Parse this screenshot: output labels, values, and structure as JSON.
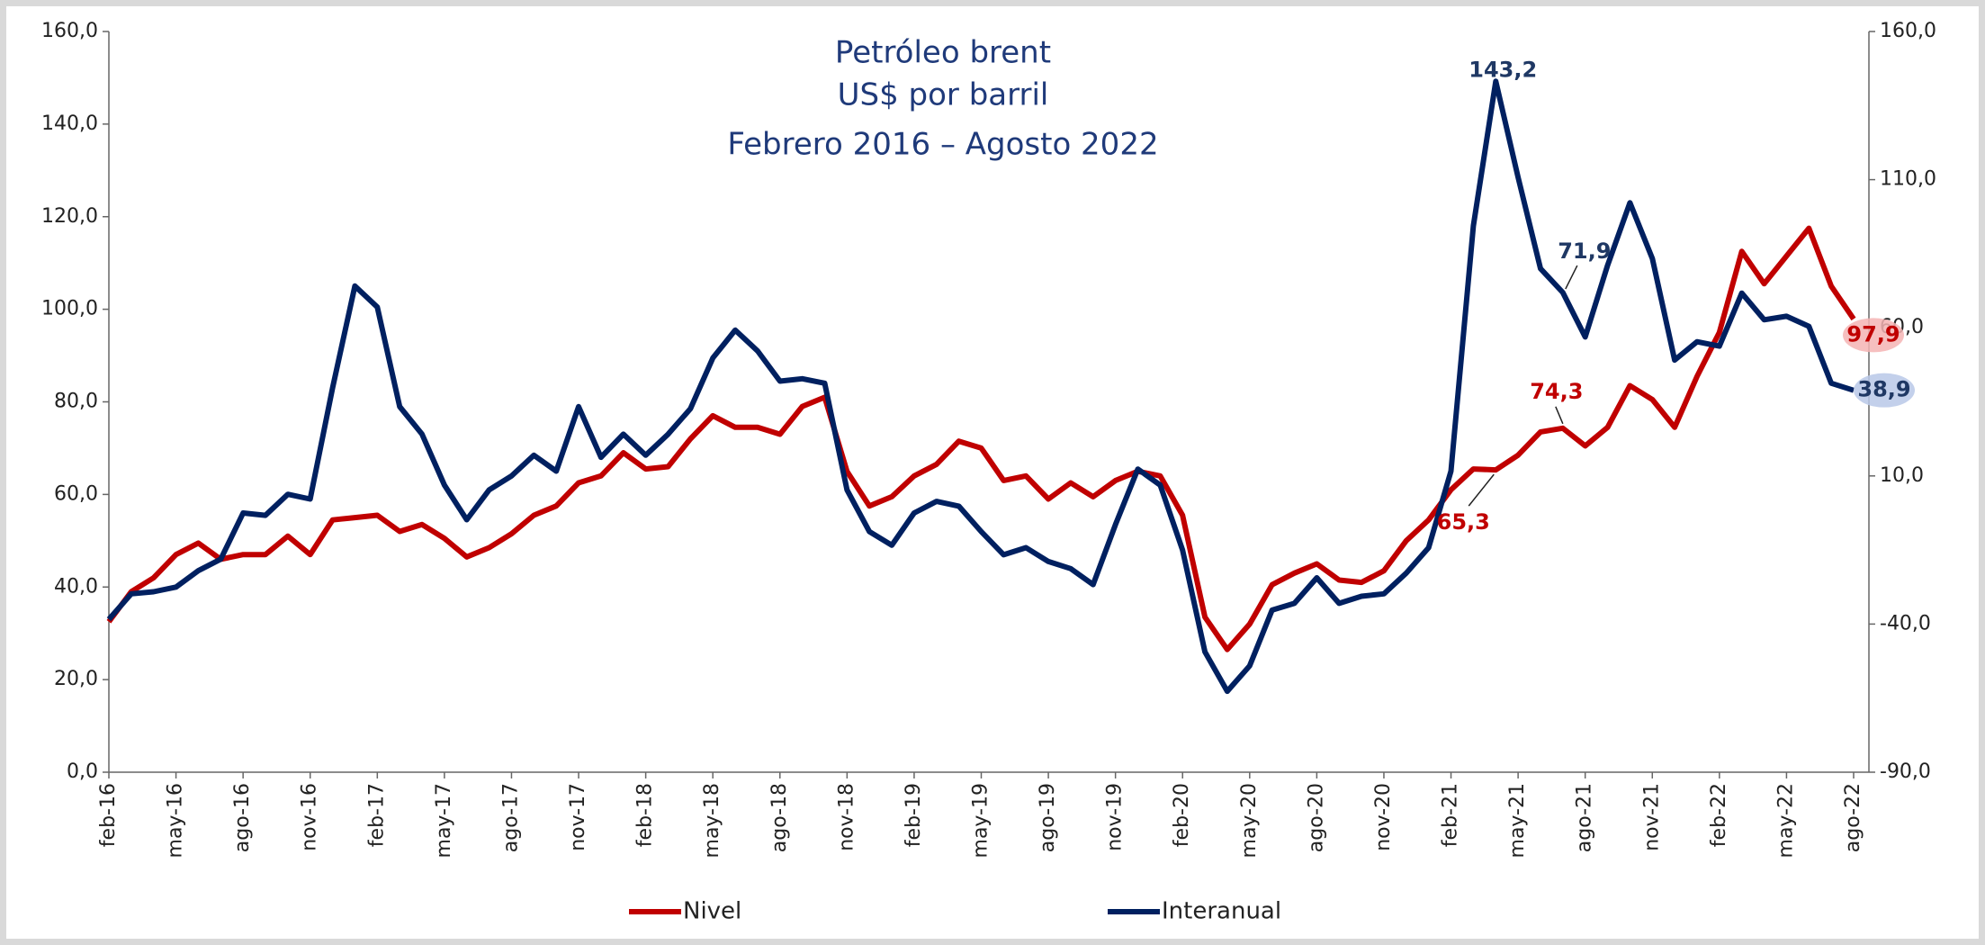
{
  "chart_data": {
    "type": "line",
    "title": [
      "Petróleo brent",
      "US$ por barril",
      "Febrero 2016 – Agosto 2022"
    ],
    "categories": [
      "feb-16",
      null,
      null,
      "may-16",
      null,
      null,
      "ago-16",
      null,
      null,
      "nov-16",
      null,
      null,
      "feb-17",
      null,
      null,
      "may-17",
      null,
      null,
      "ago-17",
      null,
      null,
      "nov-17",
      null,
      null,
      "feb-18",
      null,
      null,
      "may-18",
      null,
      null,
      "ago-18",
      null,
      null,
      "nov-18",
      null,
      null,
      "feb-19",
      null,
      null,
      "may-19",
      null,
      null,
      "ago-19",
      null,
      null,
      "nov-19",
      null,
      null,
      "feb-20",
      null,
      null,
      "may-20",
      null,
      null,
      "ago-20",
      null,
      null,
      "nov-20",
      null,
      null,
      "feb-21",
      null,
      null,
      "may-21",
      null,
      null,
      "ago-21",
      null,
      null,
      "nov-21",
      null,
      null,
      "feb-22",
      null,
      null,
      "may-22",
      null,
      null,
      "ago-22"
    ],
    "series": [
      {
        "name": "Nivel",
        "color": "#c00000",
        "values": [
          32.5,
          39,
          42,
          47,
          49.5,
          46,
          47,
          47,
          51,
          47,
          54.5,
          55,
          55.5,
          52,
          53.5,
          50.5,
          46.5,
          48.5,
          51.5,
          55.5,
          57.5,
          62.5,
          64,
          69,
          65.5,
          66,
          72,
          77,
          74.5,
          74.5,
          73,
          79,
          81,
          65,
          57.5,
          59.5,
          64,
          66.5,
          71.5,
          70,
          63,
          64,
          59,
          62.5,
          59.5,
          63,
          65,
          64,
          55.5,
          33.5,
          26.5,
          32,
          40.5,
          43,
          45,
          41.5,
          41,
          43.5,
          50,
          54.5,
          61,
          65.5,
          65.3,
          68.5,
          73.5,
          74.3,
          70.5,
          74.5,
          83.5,
          80.5,
          74.5,
          85.5,
          95,
          112.5,
          105.5,
          111.5,
          117.5,
          105,
          97.9
        ],
        "value_labels": [
          null,
          null,
          null,
          null,
          null,
          null,
          null,
          null,
          null,
          null,
          null,
          null,
          null,
          null,
          null,
          null,
          null,
          null,
          null,
          null,
          null,
          null,
          null,
          null,
          null,
          null,
          null,
          null,
          null,
          null,
          null,
          null,
          null,
          null,
          null,
          null,
          null,
          null,
          null,
          null,
          null,
          null,
          null,
          null,
          null,
          null,
          null,
          null,
          null,
          null,
          null,
          null,
          null,
          null,
          null,
          null,
          null,
          null,
          null,
          null,
          null,
          null,
          "65,3",
          null,
          null,
          "74,3",
          null,
          null,
          null,
          null,
          null,
          null,
          null,
          null,
          null,
          null,
          null,
          null,
          "97,9"
        ]
      },
      {
        "name": "Interanual",
        "color": "#002060",
        "axis": "y2",
        "values": [
          -38.4,
          -29.8,
          -29.1,
          -27.5,
          -22.0,
          -18.1,
          -2.5,
          -3.3,
          3.8,
          2.2,
          39.7,
          74.1,
          67.0,
          33.4,
          24.1,
          6.9,
          -4.8,
          5.3,
          10.0,
          17.0,
          11.6,
          33.4,
          16.3,
          24.1,
          17.0,
          24.1,
          32.7,
          49.8,
          59.2,
          52.2,
          42.0,
          42.8,
          41.3,
          5.3,
          -8.8,
          -13.4,
          -2.5,
          1.4,
          -0.2,
          -8.8,
          -16.6,
          -14.2,
          -18.9,
          -21.3,
          -26.7,
          -6.4,
          12.3,
          6.9,
          -15.0,
          -49.4,
          -62.7,
          -54.1,
          -35.3,
          -33.0,
          -24.4,
          -33.0,
          -30.6,
          -29.8,
          -22.8,
          -14.2,
          11.6,
          94.4,
          143.2,
          110.8,
          80.0,
          71.9,
          56.9,
          81.1,
          102.2,
          83.4,
          49.1,
          55.3,
          53.8,
          71.7,
          62.7,
          63.9,
          60.5,
          41.3,
          38.9
        ],
        "value_labels": [
          null,
          null,
          null,
          null,
          null,
          null,
          null,
          null,
          null,
          null,
          null,
          null,
          null,
          null,
          null,
          null,
          null,
          null,
          null,
          null,
          null,
          null,
          null,
          null,
          null,
          null,
          null,
          null,
          null,
          null,
          null,
          null,
          null,
          null,
          null,
          null,
          null,
          null,
          null,
          null,
          null,
          null,
          null,
          null,
          null,
          null,
          null,
          null,
          null,
          null,
          null,
          null,
          null,
          null,
          null,
          null,
          null,
          null,
          null,
          null,
          null,
          null,
          "143,2",
          null,
          null,
          "71,9",
          null,
          null,
          null,
          null,
          null,
          null,
          null,
          null,
          null,
          null,
          null,
          null,
          "38,9"
        ]
      }
    ],
    "ylim": [
      0,
      160
    ],
    "yticks": [
      {
        "value": 0,
        "label": "0,0"
      },
      {
        "value": 20,
        "label": "20,0"
      },
      {
        "value": 40,
        "label": "40,0"
      },
      {
        "value": 60,
        "label": "60,0"
      },
      {
        "value": 80,
        "label": "80,0"
      },
      {
        "value": 100,
        "label": "100,0"
      },
      {
        "value": 120,
        "label": "120,0"
      },
      {
        "value": 140,
        "label": "140,0"
      },
      {
        "value": 160,
        "label": "160,0"
      }
    ],
    "y2lim": [
      -90,
      160
    ],
    "y2ticks": [
      {
        "value": -90,
        "label": "-90,0"
      },
      {
        "value": -40,
        "label": "-40,0"
      },
      {
        "value": 10,
        "label": "10,0"
      },
      {
        "value": 60,
        "label": "60,0"
      },
      {
        "value": 110,
        "label": "110,0"
      },
      {
        "value": 160,
        "label": "160,0"
      }
    ],
    "grid": false,
    "legend": "bottom"
  }
}
